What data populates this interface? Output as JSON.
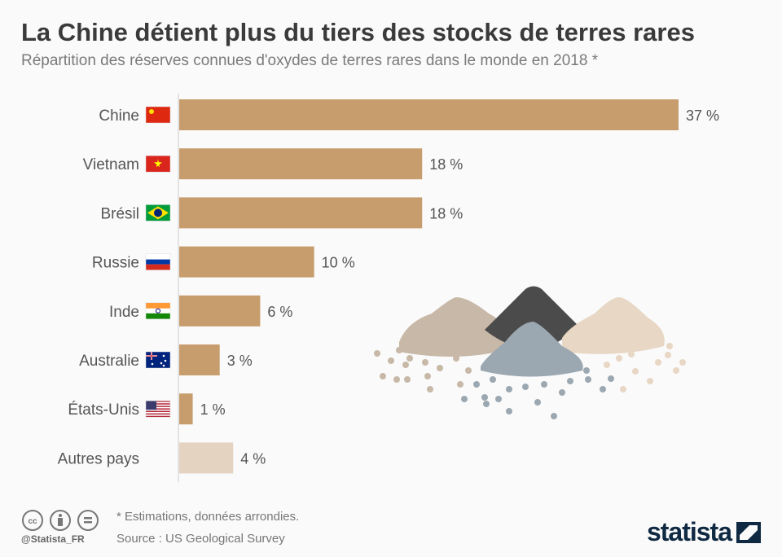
{
  "header": {
    "title": "La Chine détient plus du tiers des stocks de terres rares",
    "subtitle": "Répartition des réserves connues d'oxydes de terres rares dans le monde en 2018 *"
  },
  "chart_data": {
    "type": "bar",
    "orientation": "horizontal",
    "categories": [
      "Chine",
      "Vietnam",
      "Brésil",
      "Russie",
      "Inde",
      "Australie",
      "États-Unis",
      "Autres pays"
    ],
    "values": [
      37,
      18,
      18,
      10,
      6,
      3,
      1,
      4
    ],
    "labels": [
      "37 %",
      "18 %",
      "18 %",
      "10 %",
      "6 %",
      "3 %",
      "1 %",
      "4 %"
    ],
    "flags": [
      "china",
      "vietnam",
      "brazil",
      "russia",
      "india",
      "australia",
      "usa",
      null
    ],
    "colors": {
      "main": "#c89d6e",
      "other": "#e4d3c1"
    },
    "xlim": [
      0,
      37
    ],
    "grid": false
  },
  "footer": {
    "note": "* Estimations, données arrondies.",
    "source": "Source : US Geological Survey",
    "handle": "@Statista_FR",
    "logo": "statista"
  },
  "icons": [
    "cc-icon",
    "attribution-icon",
    "no-derivatives-icon"
  ]
}
